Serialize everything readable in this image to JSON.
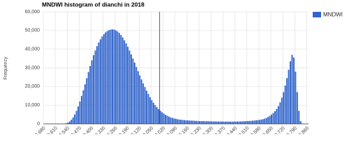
{
  "chart_data": {
    "type": "histogram",
    "title": "MNDWI histogram of dianchi in 2018",
    "y_label": "Frequency",
    "series": [
      {
        "name": "MNDWI",
        "color": "#3366cc",
        "values": [
          0,
          0,
          0,
          0,
          0,
          0,
          0,
          0,
          0,
          0,
          0,
          0,
          0,
          300,
          700,
          1300,
          2200,
          3400,
          5000,
          7000,
          9300,
          12000,
          15000,
          18000,
          21200,
          24500,
          27800,
          31000,
          34000,
          36800,
          39300,
          41600,
          43600,
          45300,
          46800,
          48000,
          49000,
          49700,
          50200,
          50500,
          50600,
          50500,
          50100,
          49500,
          48700,
          47600,
          46300,
          44800,
          43100,
          41300,
          39300,
          37200,
          35000,
          32800,
          30500,
          28200,
          26000,
          23800,
          21700,
          19700,
          17800,
          16000,
          14300,
          12700,
          11300,
          10000,
          8900,
          7900,
          7000,
          6200,
          5500,
          4900,
          4400,
          3900,
          3500,
          3200,
          2900,
          2700,
          2500,
          2300,
          2200,
          2100,
          2000,
          1900,
          1850,
          1800,
          1750,
          1700,
          1650,
          1600,
          1550,
          1500,
          1500,
          1450,
          1450,
          1400,
          1400,
          1350,
          1350,
          1300,
          1300,
          1300,
          1250,
          1250,
          1250,
          1200,
          1200,
          1200,
          1200,
          1200,
          1200,
          1200,
          1250,
          1250,
          1300,
          1300,
          1350,
          1400,
          1450,
          1500,
          1550,
          1600,
          1700,
          1800,
          1900,
          2000,
          2100,
          2300,
          2500,
          2800,
          3200,
          3700,
          4300,
          5000,
          5800,
          6800,
          8000,
          9500,
          11500,
          14000,
          17000,
          20500,
          24500,
          29000,
          33500,
          37000,
          35500,
          28000,
          17000,
          7000,
          1500,
          200,
          0,
          0,
          0
        ]
      }
    ],
    "bins": [
      -0.68,
      -0.67,
      -0.66,
      -0.65,
      -0.64,
      -0.63,
      -0.62,
      -0.61,
      -0.6,
      -0.59,
      -0.58,
      -0.57,
      -0.56,
      -0.55,
      -0.54,
      -0.53,
      -0.52,
      -0.51,
      -0.5,
      -0.49,
      -0.48,
      -0.47,
      -0.46,
      -0.45,
      -0.44,
      -0.43,
      -0.42,
      -0.41,
      -0.4,
      -0.39,
      -0.38,
      -0.37,
      -0.36,
      -0.35,
      -0.34,
      -0.33,
      -0.32,
      -0.31,
      -0.3,
      -0.29,
      -0.28,
      -0.27,
      -0.26,
      -0.25,
      -0.24,
      -0.23,
      -0.22,
      -0.21,
      -0.2,
      -0.19,
      -0.18,
      -0.17,
      -0.16,
      -0.15,
      -0.14,
      -0.13,
      -0.12,
      -0.11,
      -0.1,
      -0.09,
      -0.08,
      -0.07,
      -0.06,
      -0.05,
      -0.04,
      -0.03,
      -0.02,
      -0.01,
      0,
      0.01,
      0.02,
      0.03,
      0.04,
      0.05,
      0.06,
      0.07,
      0.08,
      0.09,
      0.1,
      0.11,
      0.12,
      0.13,
      0.14,
      0.15,
      0.16,
      0.17,
      0.18,
      0.19,
      0.2,
      0.21,
      0.22,
      0.23,
      0.24,
      0.25,
      0.26,
      0.27,
      0.28,
      0.29,
      0.3,
      0.31,
      0.32,
      0.33,
      0.34,
      0.35,
      0.36,
      0.37,
      0.38,
      0.39,
      0.4,
      0.41,
      0.42,
      0.43,
      0.44,
      0.45,
      0.46,
      0.47,
      0.48,
      0.49,
      0.5,
      0.51,
      0.52,
      0.53,
      0.54,
      0.55,
      0.56,
      0.57,
      0.58,
      0.59,
      0.6,
      0.61,
      0.62,
      0.63,
      0.64,
      0.65,
      0.66,
      0.67,
      0.68,
      0.69,
      0.7,
      0.71,
      0.72,
      0.73,
      0.74,
      0.75,
      0.76,
      0.77,
      0.78,
      0.79,
      0.8,
      0.81,
      0.82,
      0.83,
      0.84,
      0.85,
      0.86,
      0.87
    ],
    "xlim": [
      -0.68,
      0.87
    ],
    "xticks": [
      {
        "value": -0.68,
        "label": "-0.680"
      },
      {
        "value": -0.61,
        "label": "-0.610"
      },
      {
        "value": -0.54,
        "label": "-0.540"
      },
      {
        "value": -0.47,
        "label": "-0.470"
      },
      {
        "value": -0.4,
        "label": "-0.400"
      },
      {
        "value": -0.33,
        "label": "-0.330"
      },
      {
        "value": -0.26,
        "label": "-0.260"
      },
      {
        "value": -0.19,
        "label": "-0.190"
      },
      {
        "value": -0.12,
        "label": "-0.120"
      },
      {
        "value": -0.05,
        "label": "-0.050"
      },
      {
        "value": 0.02,
        "label": "0.020"
      },
      {
        "value": 0.09,
        "label": "0.090"
      },
      {
        "value": 0.16,
        "label": "0.160"
      },
      {
        "value": 0.23,
        "label": "0.230"
      },
      {
        "value": 0.3,
        "label": "0.300"
      },
      {
        "value": 0.37,
        "label": "0.370"
      },
      {
        "value": 0.44,
        "label": "0.440"
      },
      {
        "value": 0.51,
        "label": "0.510"
      },
      {
        "value": 0.58,
        "label": "0.580"
      },
      {
        "value": 0.65,
        "label": "0.650"
      },
      {
        "value": 0.72,
        "label": "0.720"
      },
      {
        "value": 0.79,
        "label": "0.790"
      },
      {
        "value": 0.86,
        "label": "0.860"
      }
    ],
    "ylim": [
      0,
      60000
    ],
    "yticks": [
      0,
      {
        "value": 10000,
        "label": "10,000"
      },
      {
        "value": 20000,
        "label": "20,000"
      },
      {
        "value": 30000,
        "label": "30,000"
      },
      {
        "value": 40000,
        "label": "40,000"
      },
      {
        "value": 50000,
        "label": "50,000"
      },
      {
        "value": 60000,
        "label": "60,000"
      }
    ],
    "grid": true,
    "legend": "right"
  }
}
